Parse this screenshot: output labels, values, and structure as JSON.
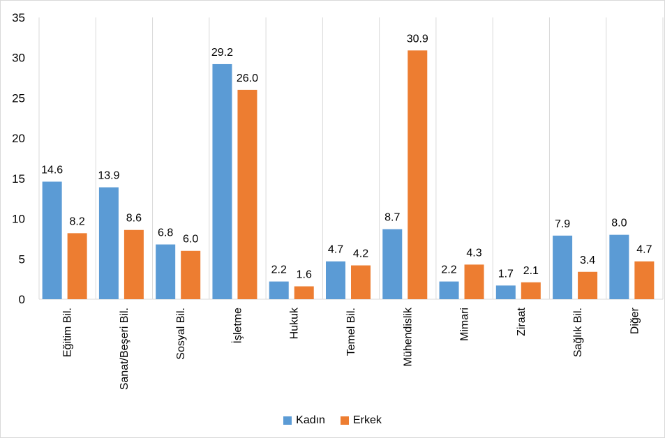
{
  "chart_data": {
    "type": "bar",
    "categories": [
      "Eğitim Bil.",
      "Sanat/Beşeri Bil.",
      "Sosyal Bil.",
      "İşletme",
      "Hukuk",
      "Temel Bil.",
      "Mühendislik",
      "Mimari",
      "Ziraat",
      "Sağlık Bil.",
      "Diğer"
    ],
    "series": [
      {
        "name": "Kadın",
        "color": "#5b9bd5",
        "values": [
          14.6,
          13.9,
          6.8,
          29.2,
          2.2,
          4.7,
          8.7,
          2.2,
          1.7,
          7.9,
          8.0
        ]
      },
      {
        "name": "Erkek",
        "color": "#ed7d31",
        "values": [
          8.2,
          8.6,
          6.0,
          26.0,
          1.6,
          4.2,
          30.9,
          4.3,
          2.1,
          3.4,
          4.7
        ]
      }
    ],
    "ylim": [
      0,
      35
    ],
    "yticks": [
      0,
      5,
      10,
      15,
      20,
      25,
      30,
      35
    ],
    "grid": "vertical category separators",
    "legend": "bottom-center",
    "data_labels": true
  }
}
